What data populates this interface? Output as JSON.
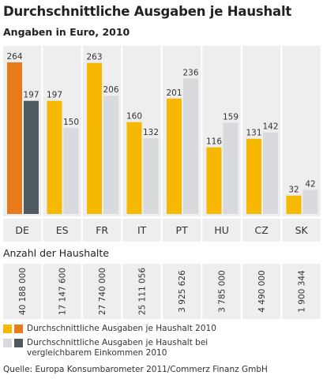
{
  "title": "Durchschnittliche Ausgaben je Haushalt",
  "subtitle": "Angaben in Euro, 2010",
  "households_title": "Anzahl der Haushalte",
  "legend": [
    {
      "label": "Durchschnittliche Ausgaben je Haushalt 2010",
      "colors": [
        "#f6b800",
        "#e97a1a"
      ]
    },
    {
      "label": "Durchschnittliche Ausgaben je Haushalt bei vergleichbarem Einkommen 2010",
      "colors": [
        "#d8dadd",
        "#4e5a5e"
      ]
    }
  ],
  "source": "Quelle: Europa Konsumbarometer 2011/Commerz Finanz GmbH",
  "colors": {
    "primary": "#f6b800",
    "primary_highlight": "#e97a1a",
    "secondary": "#d8dadd",
    "secondary_highlight": "#4e5a5e",
    "panel": "#eeeeee"
  },
  "chart_data": {
    "type": "bar",
    "categories": [
      "DE",
      "ES",
      "FR",
      "IT",
      "PT",
      "HU",
      "CZ",
      "SK"
    ],
    "series": [
      {
        "name": "Durchschnittliche Ausgaben je Haushalt 2010",
        "values": [
          264,
          197,
          263,
          160,
          201,
          116,
          131,
          32
        ]
      },
      {
        "name": "Durchschnittliche Ausgaben je Haushalt bei vergleichbarem Einkommen 2010",
        "values": [
          197,
          150,
          206,
          132,
          236,
          159,
          142,
          42
        ]
      }
    ],
    "highlight_category": "DE",
    "households": [
      "40 188 000",
      "17 147 600",
      "27 740 000",
      "25 111 056",
      "3 925 626",
      "3 785 000",
      "4 490 000",
      "1 900 344"
    ],
    "title": "Durchschnittliche Ausgaben je Haushalt",
    "ylim": [
      0,
      264
    ],
    "grid": false
  }
}
